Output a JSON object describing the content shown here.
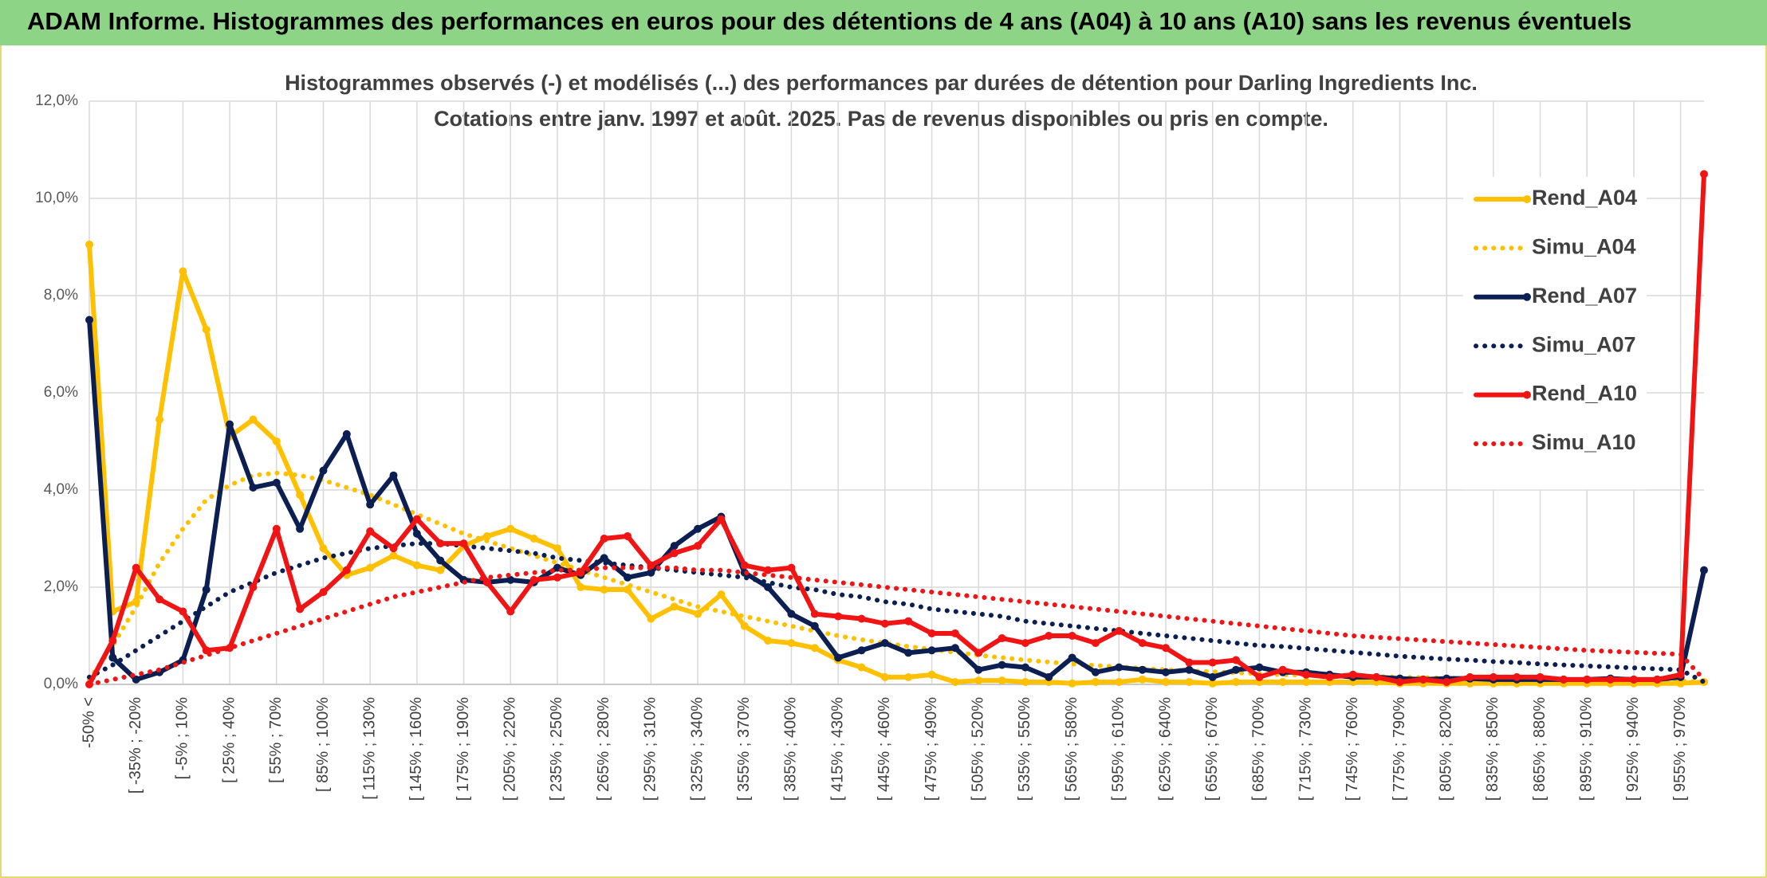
{
  "chart_data": {
    "type": "line",
    "title": "ADAM Informe. Histogrammes des performances en euros pour des détentions de 4 ans (A04) à 10 ans (A10) sans les revenus éventuels",
    "subtitle": [
      "Histogrammes observés (-) et modélisés (...) des performances par durées de détention pour Darling Ingredients Inc.",
      "Cotations entre janv. 1997 et août. 2025. Pas de revenus disponibles ou pris en compte."
    ],
    "categories": [
      "-50% <",
      null,
      "[ -35% ; -20%",
      null,
      "[ -5% ; 10%",
      null,
      "[ 25% ; 40%",
      null,
      "[ 55% ; 70%",
      null,
      "[ 85% ; 100%",
      null,
      "[ 115% ; 130%",
      null,
      "[ 145% ; 160%",
      null,
      "[ 175% ; 190%",
      null,
      "[ 205% ; 220%",
      null,
      "[ 235% ; 250%",
      null,
      "[ 265% ; 280%",
      null,
      "[ 295% ; 310%",
      null,
      "[ 325% ; 340%",
      null,
      "[ 355% ; 370%",
      null,
      "[ 385% ; 400%",
      null,
      "[ 415% ; 430%",
      null,
      "[ 445% ; 460%",
      null,
      "[ 475% ; 490%",
      null,
      "[ 505% ; 520%",
      null,
      "[ 535% ; 550%",
      null,
      "[ 565% ; 580%",
      null,
      "[ 595% ; 610%",
      null,
      "[ 625% ; 640%",
      null,
      "[ 655% ; 670%",
      null,
      "[ 685% ; 700%",
      null,
      "[ 715% ; 730%",
      null,
      "[ 745% ; 760%",
      null,
      "[ 775% ; 790%",
      null,
      "[ 805% ; 820%",
      null,
      "[ 835% ; 850%",
      null,
      "[ 865% ; 880%",
      null,
      "[ 895% ; 910%",
      null,
      "[ 925% ; 940%",
      null,
      "[ 955% ; 970%",
      null
    ],
    "series": [
      {
        "name": "Rend_A04",
        "color": "#ffc000",
        "style": "solid",
        "values": [
          9.05,
          1.5,
          1.7,
          5.45,
          8.5,
          7.3,
          5.1,
          5.45,
          5.0,
          3.9,
          2.8,
          2.25,
          2.4,
          2.65,
          2.45,
          2.35,
          2.85,
          3.05,
          3.2,
          3.0,
          2.8,
          2.0,
          1.95,
          1.95,
          1.35,
          1.6,
          1.45,
          1.85,
          1.2,
          0.9,
          0.85,
          0.75,
          0.5,
          0.35,
          0.15,
          0.15,
          0.2,
          0.05,
          0.08,
          0.08,
          0.05,
          0.05,
          0.02,
          0.05,
          0.05,
          0.1,
          0.05,
          0.05,
          0.02,
          0.05,
          0.05,
          0.05,
          0.05,
          0.05,
          0.05,
          0.05,
          0.02,
          0.02,
          0.02,
          0.02,
          0.02,
          0.02,
          0.02,
          0.02,
          0.02,
          0.02,
          0.02,
          0.02,
          0.02,
          0.05
        ]
      },
      {
        "name": "Simu_A04",
        "color": "#ffc000",
        "style": "dotted",
        "values": [
          0.1,
          0.8,
          1.6,
          2.5,
          3.2,
          3.8,
          4.1,
          4.3,
          4.35,
          4.3,
          4.2,
          4.05,
          3.9,
          3.7,
          3.5,
          3.3,
          3.1,
          2.95,
          2.8,
          2.65,
          2.5,
          2.35,
          2.2,
          2.05,
          1.9,
          1.75,
          1.6,
          1.5,
          1.4,
          1.3,
          1.2,
          1.1,
          1.0,
          0.92,
          0.85,
          0.78,
          0.72,
          0.66,
          0.6,
          0.55,
          0.5,
          0.46,
          0.42,
          0.39,
          0.36,
          0.33,
          0.3,
          0.28,
          0.26,
          0.24,
          0.22,
          0.2,
          0.19,
          0.18,
          0.17,
          0.16,
          0.15,
          0.14,
          0.13,
          0.12,
          0.11,
          0.1,
          0.1,
          0.09,
          0.09,
          0.08,
          0.08,
          0.07,
          0.07,
          0.05
        ]
      },
      {
        "name": "Rend_A07",
        "color": "#0c1f52",
        "style": "solid",
        "values": [
          7.5,
          0.55,
          0.1,
          0.25,
          0.5,
          1.95,
          5.35,
          4.05,
          4.15,
          3.2,
          4.4,
          5.15,
          3.7,
          4.3,
          3.1,
          2.55,
          2.15,
          2.1,
          2.15,
          2.1,
          2.4,
          2.25,
          2.6,
          2.2,
          2.3,
          2.85,
          3.2,
          3.45,
          2.3,
          2.0,
          1.45,
          1.2,
          0.55,
          0.7,
          0.85,
          0.65,
          0.7,
          0.75,
          0.3,
          0.4,
          0.35,
          0.15,
          0.55,
          0.25,
          0.35,
          0.3,
          0.25,
          0.3,
          0.15,
          0.3,
          0.35,
          0.25,
          0.25,
          0.2,
          0.15,
          0.15,
          0.12,
          0.1,
          0.12,
          0.12,
          0.1,
          0.1,
          0.1,
          0.1,
          0.1,
          0.12,
          0.1,
          0.1,
          0.15,
          2.35
        ]
      },
      {
        "name": "Simu_A07",
        "color": "#0c1f52",
        "style": "dotted",
        "values": [
          0.15,
          0.4,
          0.7,
          1.0,
          1.3,
          1.6,
          1.9,
          2.1,
          2.3,
          2.45,
          2.6,
          2.7,
          2.8,
          2.85,
          2.9,
          2.9,
          2.85,
          2.8,
          2.75,
          2.7,
          2.6,
          2.55,
          2.5,
          2.45,
          2.4,
          2.35,
          2.3,
          2.25,
          2.2,
          2.1,
          2.0,
          1.95,
          1.85,
          1.8,
          1.7,
          1.65,
          1.55,
          1.5,
          1.45,
          1.4,
          1.3,
          1.25,
          1.2,
          1.15,
          1.1,
          1.05,
          1.0,
          0.95,
          0.9,
          0.85,
          0.8,
          0.78,
          0.74,
          0.7,
          0.66,
          0.62,
          0.58,
          0.55,
          0.52,
          0.5,
          0.47,
          0.45,
          0.42,
          0.4,
          0.38,
          0.36,
          0.34,
          0.32,
          0.3,
          0.05
        ]
      },
      {
        "name": "Rend_A10",
        "color": "#f01414",
        "style": "solid",
        "values": [
          0,
          0.9,
          2.4,
          1.75,
          1.5,
          0.7,
          0.75,
          2.0,
          3.2,
          1.55,
          1.9,
          2.35,
          3.15,
          2.8,
          3.4,
          2.9,
          2.9,
          2.1,
          1.5,
          2.15,
          2.2,
          2.3,
          3.0,
          3.05,
          2.45,
          2.7,
          2.85,
          3.4,
          2.45,
          2.35,
          2.4,
          1.45,
          1.4,
          1.35,
          1.25,
          1.3,
          1.05,
          1.05,
          0.65,
          0.95,
          0.85,
          1.0,
          1.0,
          0.85,
          1.1,
          0.85,
          0.75,
          0.45,
          0.45,
          0.5,
          0.15,
          0.3,
          0.2,
          0.15,
          0.2,
          0.15,
          0.05,
          0.1,
          0.05,
          0.15,
          0.15,
          0.15,
          0.15,
          0.1,
          0.1,
          0.1,
          0.1,
          0.1,
          0.2,
          10.5
        ]
      },
      {
        "name": "Simu_A10",
        "color": "#f01414",
        "style": "dotted",
        "values": [
          0,
          0.1,
          0.2,
          0.3,
          0.45,
          0.6,
          0.75,
          0.9,
          1.05,
          1.2,
          1.35,
          1.5,
          1.65,
          1.8,
          1.9,
          2.0,
          2.1,
          2.2,
          2.25,
          2.3,
          2.35,
          2.35,
          2.4,
          2.4,
          2.4,
          2.4,
          2.35,
          2.35,
          2.3,
          2.25,
          2.2,
          2.15,
          2.1,
          2.05,
          2.0,
          1.95,
          1.9,
          1.85,
          1.8,
          1.75,
          1.7,
          1.65,
          1.6,
          1.55,
          1.5,
          1.45,
          1.4,
          1.35,
          1.3,
          1.25,
          1.2,
          1.15,
          1.1,
          1.05,
          1.0,
          0.97,
          0.94,
          0.91,
          0.88,
          0.85,
          0.82,
          0.79,
          0.76,
          0.73,
          0.7,
          0.68,
          0.66,
          0.64,
          0.62,
          0.1
        ]
      }
    ],
    "ylim": [
      0,
      12
    ],
    "yticks": [
      {
        "value": 0,
        "label": "0,0%"
      },
      {
        "value": 2,
        "label": "2,0%"
      },
      {
        "value": 4,
        "label": "4,0%"
      },
      {
        "value": 6,
        "label": "6,0%"
      },
      {
        "value": 8,
        "label": "8,0%"
      },
      {
        "value": 10,
        "label": "10,0%"
      },
      {
        "value": 12,
        "label": "12,0%"
      }
    ],
    "grid": true,
    "legend": "right"
  }
}
